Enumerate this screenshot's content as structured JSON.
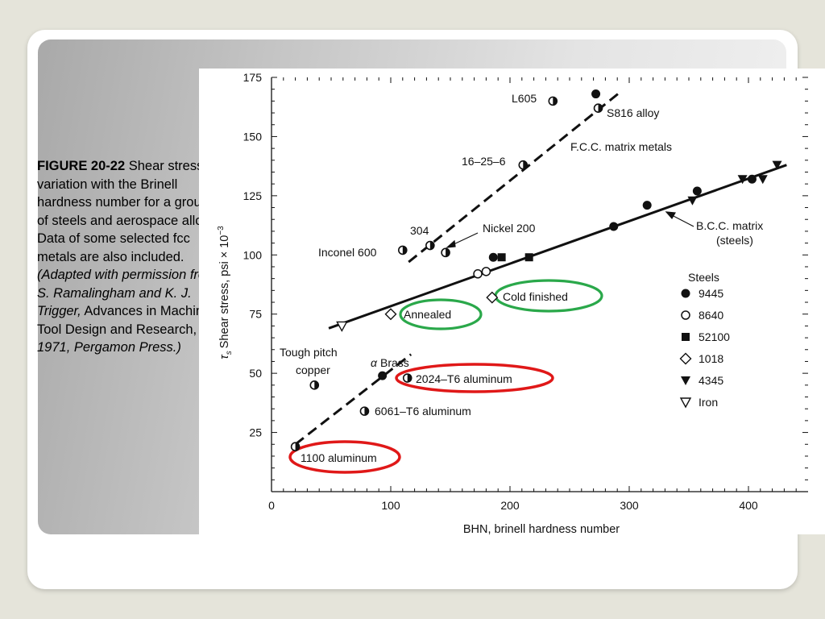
{
  "caption": {
    "fig_label": "FIGURE 20-22",
    "part1": " Shear stress t",
    "part1_sub": "s",
    "part2": " variation with the Brinell hardness number for a group of steels and aerospace alloys. Data of some selected fcc metals are also included. ",
    "italic1": "(Adapted with permission from S. Ramalingham and K. J. Trigger,",
    "part3": " Advances in Machine Tool Design and Research, ",
    "italic2": "1971, Pergamon Press.)"
  },
  "chart_data": {
    "type": "scatter",
    "xlabel": "BHN, brinell hardness number",
    "ylabel": "Shear stress, psi × 10",
    "ylabel_symbol": "τ",
    "ylabel_symbol_sub": "s",
    "ylabel_exp": "−3",
    "xlim": [
      0,
      450
    ],
    "ylim": [
      0,
      175
    ],
    "xticks": [
      "0",
      "100",
      "200",
      "300",
      "400"
    ],
    "yticks": [
      "25",
      "50",
      "75",
      "100",
      "125",
      "150",
      "175"
    ],
    "legend_title": "Steels",
    "legend_position": "right",
    "series": [
      {
        "name": "9445",
        "marker": "filled-circle",
        "points": [
          [
            93,
            49
          ],
          [
            186,
            99
          ],
          [
            272,
            168
          ],
          [
            287,
            112
          ],
          [
            315,
            121
          ],
          [
            357,
            127
          ],
          [
            403,
            132
          ]
        ]
      },
      {
        "name": "8640",
        "marker": "open-circle",
        "points": [
          [
            173,
            92
          ],
          [
            180,
            93
          ]
        ]
      },
      {
        "name": "52100",
        "marker": "filled-square",
        "points": [
          [
            193,
            99
          ],
          [
            216,
            99
          ]
        ]
      },
      {
        "name": "1018",
        "marker": "open-diamond",
        "points": [
          [
            100,
            75
          ],
          [
            185,
            82
          ]
        ]
      },
      {
        "name": "4345",
        "marker": "filled-triangle-down",
        "points": [
          [
            353,
            123
          ],
          [
            395,
            132
          ],
          [
            412,
            132
          ],
          [
            424,
            138
          ]
        ]
      },
      {
        "name": "Iron",
        "marker": "open-triangle-down",
        "points": [
          [
            59,
            70
          ]
        ]
      },
      {
        "name": "",
        "marker": "half-circle",
        "points": [
          [
            20,
            19
          ],
          [
            78,
            34
          ],
          [
            114,
            48
          ],
          [
            36,
            45
          ],
          [
            110,
            102
          ],
          [
            133,
            104
          ],
          [
            146,
            101
          ],
          [
            211,
            138
          ],
          [
            236,
            165
          ],
          [
            274,
            162
          ]
        ]
      }
    ],
    "lines": [
      {
        "label": "F.C.C. matrix metals",
        "style": "dashed",
        "from": [
          115,
          97
        ],
        "to": [
          293,
          169
        ]
      },
      {
        "label": "B.C.C. matrix (steels)",
        "style": "solid",
        "from": [
          48,
          69
        ],
        "to": [
          432,
          138
        ]
      },
      {
        "label": "",
        "style": "dashed",
        "from": [
          20,
          20
        ],
        "to": [
          117,
          58
        ]
      }
    ],
    "annotations": {
      "l605": "L605",
      "s816": "S816 alloy",
      "fcc": "F.C.C. matrix metals",
      "a16256": "16–25–6",
      "bcc1": "B.C.C. matrix",
      "bcc2": "(steels)",
      "n304": "304",
      "nickel": "Nickel 200",
      "inconel": "Inconel 600",
      "cold": "Cold finished",
      "annealed": "Annealed",
      "tough1": "Tough pitch",
      "tough2": "copper",
      "brass_alpha": "α",
      "brass": "Brass",
      "t6_2024": "2024–T6 aluminum",
      "t6_6061": "6061–T6 aluminum",
      "al1100": "1100 aluminum"
    },
    "highlight_colors": {
      "green": "#2aa84a",
      "red": "#e01818"
    }
  }
}
